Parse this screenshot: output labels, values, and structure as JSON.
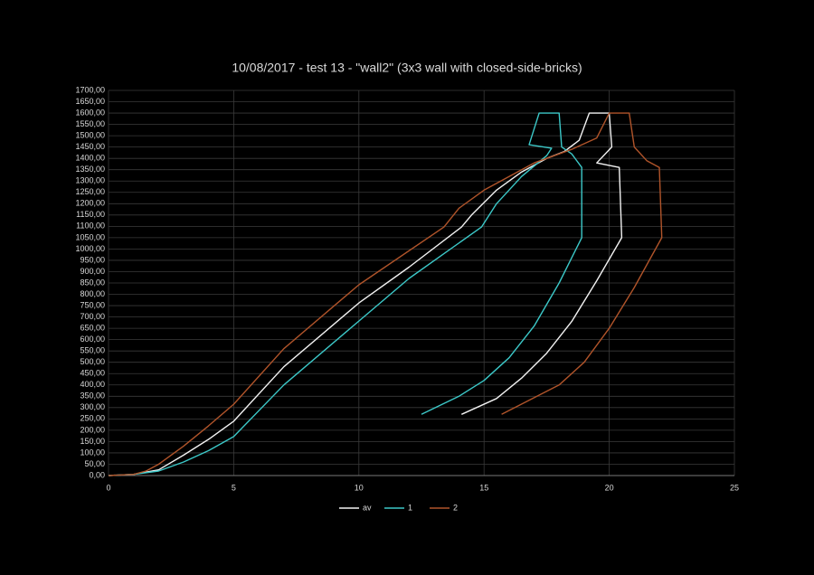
{
  "chart_data": {
    "type": "line",
    "title": "10/08/2017 - test 13 - \"wall2\" (3x3 wall with closed-side-bricks)",
    "xlim": [
      0,
      25
    ],
    "xticks": [
      0,
      5,
      10,
      15,
      20,
      25
    ],
    "ylim": [
      0,
      1700
    ],
    "yticks": [
      {
        "value": 0,
        "label": "0,00"
      },
      {
        "value": 50,
        "label": "50,00"
      },
      {
        "value": 100,
        "label": "100,00"
      },
      {
        "value": 150,
        "label": "150,00"
      },
      {
        "value": 200,
        "label": "200,00"
      },
      {
        "value": 250,
        "label": "250,00"
      },
      {
        "value": 300,
        "label": "300,00"
      },
      {
        "value": 350,
        "label": "350,00"
      },
      {
        "value": 400,
        "label": "400,00"
      },
      {
        "value": 450,
        "label": "450,00"
      },
      {
        "value": 500,
        "label": "500,00"
      },
      {
        "value": 550,
        "label": "550,00"
      },
      {
        "value": 600,
        "label": "600,00"
      },
      {
        "value": 650,
        "label": "650,00"
      },
      {
        "value": 700,
        "label": "700,00"
      },
      {
        "value": 750,
        "label": "750,00"
      },
      {
        "value": 800,
        "label": "800,00"
      },
      {
        "value": 850,
        "label": "850,00"
      },
      {
        "value": 900,
        "label": "900,00"
      },
      {
        "value": 950,
        "label": "950,00"
      },
      {
        "value": 1000,
        "label": "1000,00"
      },
      {
        "value": 1050,
        "label": "1050,00"
      },
      {
        "value": 1100,
        "label": "1100,00"
      },
      {
        "value": 1150,
        "label": "1150,00"
      },
      {
        "value": 1200,
        "label": "1200,00"
      },
      {
        "value": 1250,
        "label": "1250,00"
      },
      {
        "value": 1300,
        "label": "1300,00"
      },
      {
        "value": 1350,
        "label": "1350,00"
      },
      {
        "value": 1400,
        "label": "1400,00"
      },
      {
        "value": 1450,
        "label": "1450,00"
      },
      {
        "value": 1500,
        "label": "1500,00"
      },
      {
        "value": 1550,
        "label": "1550,00"
      },
      {
        "value": 1600,
        "label": "1600,00"
      },
      {
        "value": 1650,
        "label": "1650,00"
      },
      {
        "value": 1700,
        "label": "1700,00"
      }
    ],
    "grid": true,
    "legend": "bottom",
    "series": [
      {
        "name": "av",
        "color": "#f2f2f2",
        "x": [
          0,
          1,
          2,
          3,
          4,
          5,
          7,
          10,
          12,
          14.1,
          14.5,
          15.5,
          16.5,
          17.5,
          18.2,
          18.8,
          19.2,
          20.0,
          20.1,
          19.5,
          20.4,
          20.5,
          19.5,
          18.5,
          17.5,
          16.5,
          15.5,
          14.1
        ],
        "values": [
          0,
          5,
          25,
          90,
          160,
          240,
          480,
          762,
          920,
          1097,
          1150,
          1260,
          1340,
          1400,
          1430,
          1480,
          1600,
          1600,
          1450,
          1380,
          1360,
          1050,
          860,
          680,
          540,
          430,
          340,
          270
        ]
      },
      {
        "name": "1",
        "color": "#3cc8c8",
        "x": [
          0,
          1,
          2,
          3,
          4,
          5,
          7,
          10,
          12,
          14.9,
          15.5,
          16.5,
          17.5,
          17.7,
          16.8,
          17.2,
          18.0,
          18.1,
          18.5,
          18.9,
          18.9,
          18.0,
          17.0,
          16.0,
          15.0,
          14.0,
          12.5
        ],
        "values": [
          0,
          5,
          20,
          60,
          110,
          172,
          400,
          682,
          870,
          1097,
          1200,
          1320,
          1412,
          1445,
          1460,
          1600,
          1600,
          1450,
          1420,
          1360,
          1050,
          850,
          660,
          520,
          420,
          350,
          270
        ]
      },
      {
        "name": "2",
        "color": "#b0542a",
        "x": [
          0,
          1,
          1.5,
          2,
          3,
          4,
          5,
          7,
          10,
          13.4,
          14,
          15,
          16,
          17,
          18,
          18.5,
          19.5,
          20.0,
          20.8,
          21.0,
          21.5,
          22.0,
          22.1,
          21.0,
          20.0,
          19.0,
          18.0,
          15.7
        ],
        "values": [
          0,
          5,
          20,
          50,
          130,
          220,
          315,
          560,
          842,
          1097,
          1180,
          1260,
          1320,
          1380,
          1420,
          1440,
          1490,
          1600,
          1600,
          1450,
          1390,
          1360,
          1050,
          830,
          650,
          500,
          400,
          270
        ]
      }
    ]
  }
}
